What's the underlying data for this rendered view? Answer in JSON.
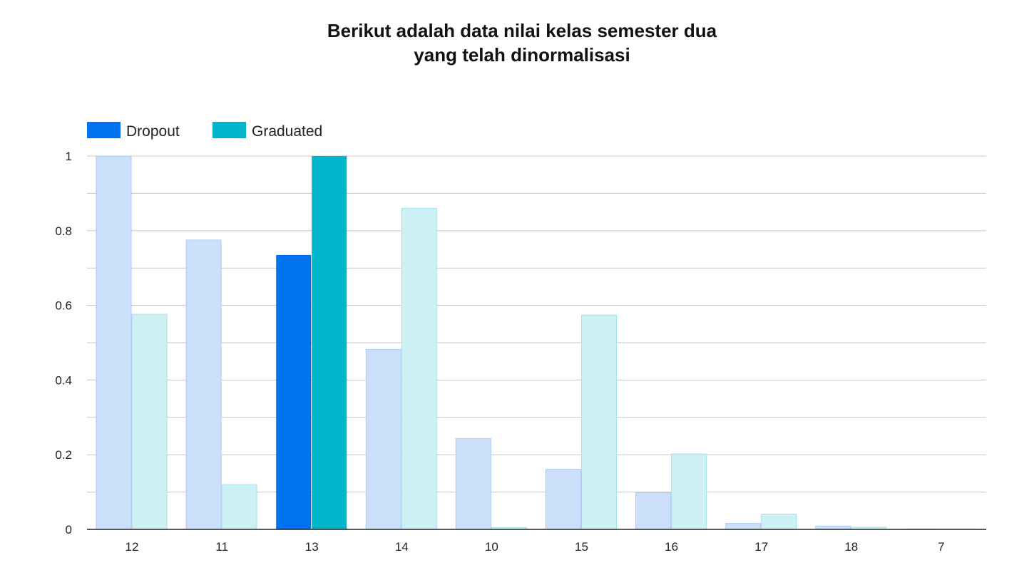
{
  "chart_data": {
    "type": "bar",
    "title_lines": [
      "Berikut adalah data nilai kelas semester dua",
      "yang telah dinormalisasi"
    ],
    "categories": [
      "12",
      "11",
      "13",
      "14",
      "10",
      "15",
      "16",
      "17",
      "18",
      "7"
    ],
    "series": [
      {
        "name": "Dropout",
        "color": "#0072f0",
        "faded_color": "#cce0fb",
        "faded_stroke": "#a9c9f3",
        "values": [
          1.0,
          0.775,
          0.735,
          0.482,
          0.243,
          0.161,
          0.098,
          0.016,
          0.009,
          0.001
        ]
      },
      {
        "name": "Graduated",
        "color": "#00b6cb",
        "faded_color": "#ccf0f4",
        "faded_stroke": "#a3e1e9",
        "values": [
          0.576,
          0.12,
          1.0,
          0.86,
          0.005,
          0.574,
          0.202,
          0.041,
          0.006,
          0.001
        ]
      }
    ],
    "highlighted_category": "13",
    "ylim": [
      0,
      1
    ],
    "yticks": [
      "0",
      "0.2",
      "0.4",
      "0.6",
      "0.8",
      "1"
    ],
    "ytick_values": [
      0,
      0.2,
      0.4,
      0.6,
      0.8,
      1
    ],
    "minor_grid_step": 0.1,
    "grid": true,
    "legend_position": "top-left",
    "xlabel": "",
    "ylabel": ""
  }
}
